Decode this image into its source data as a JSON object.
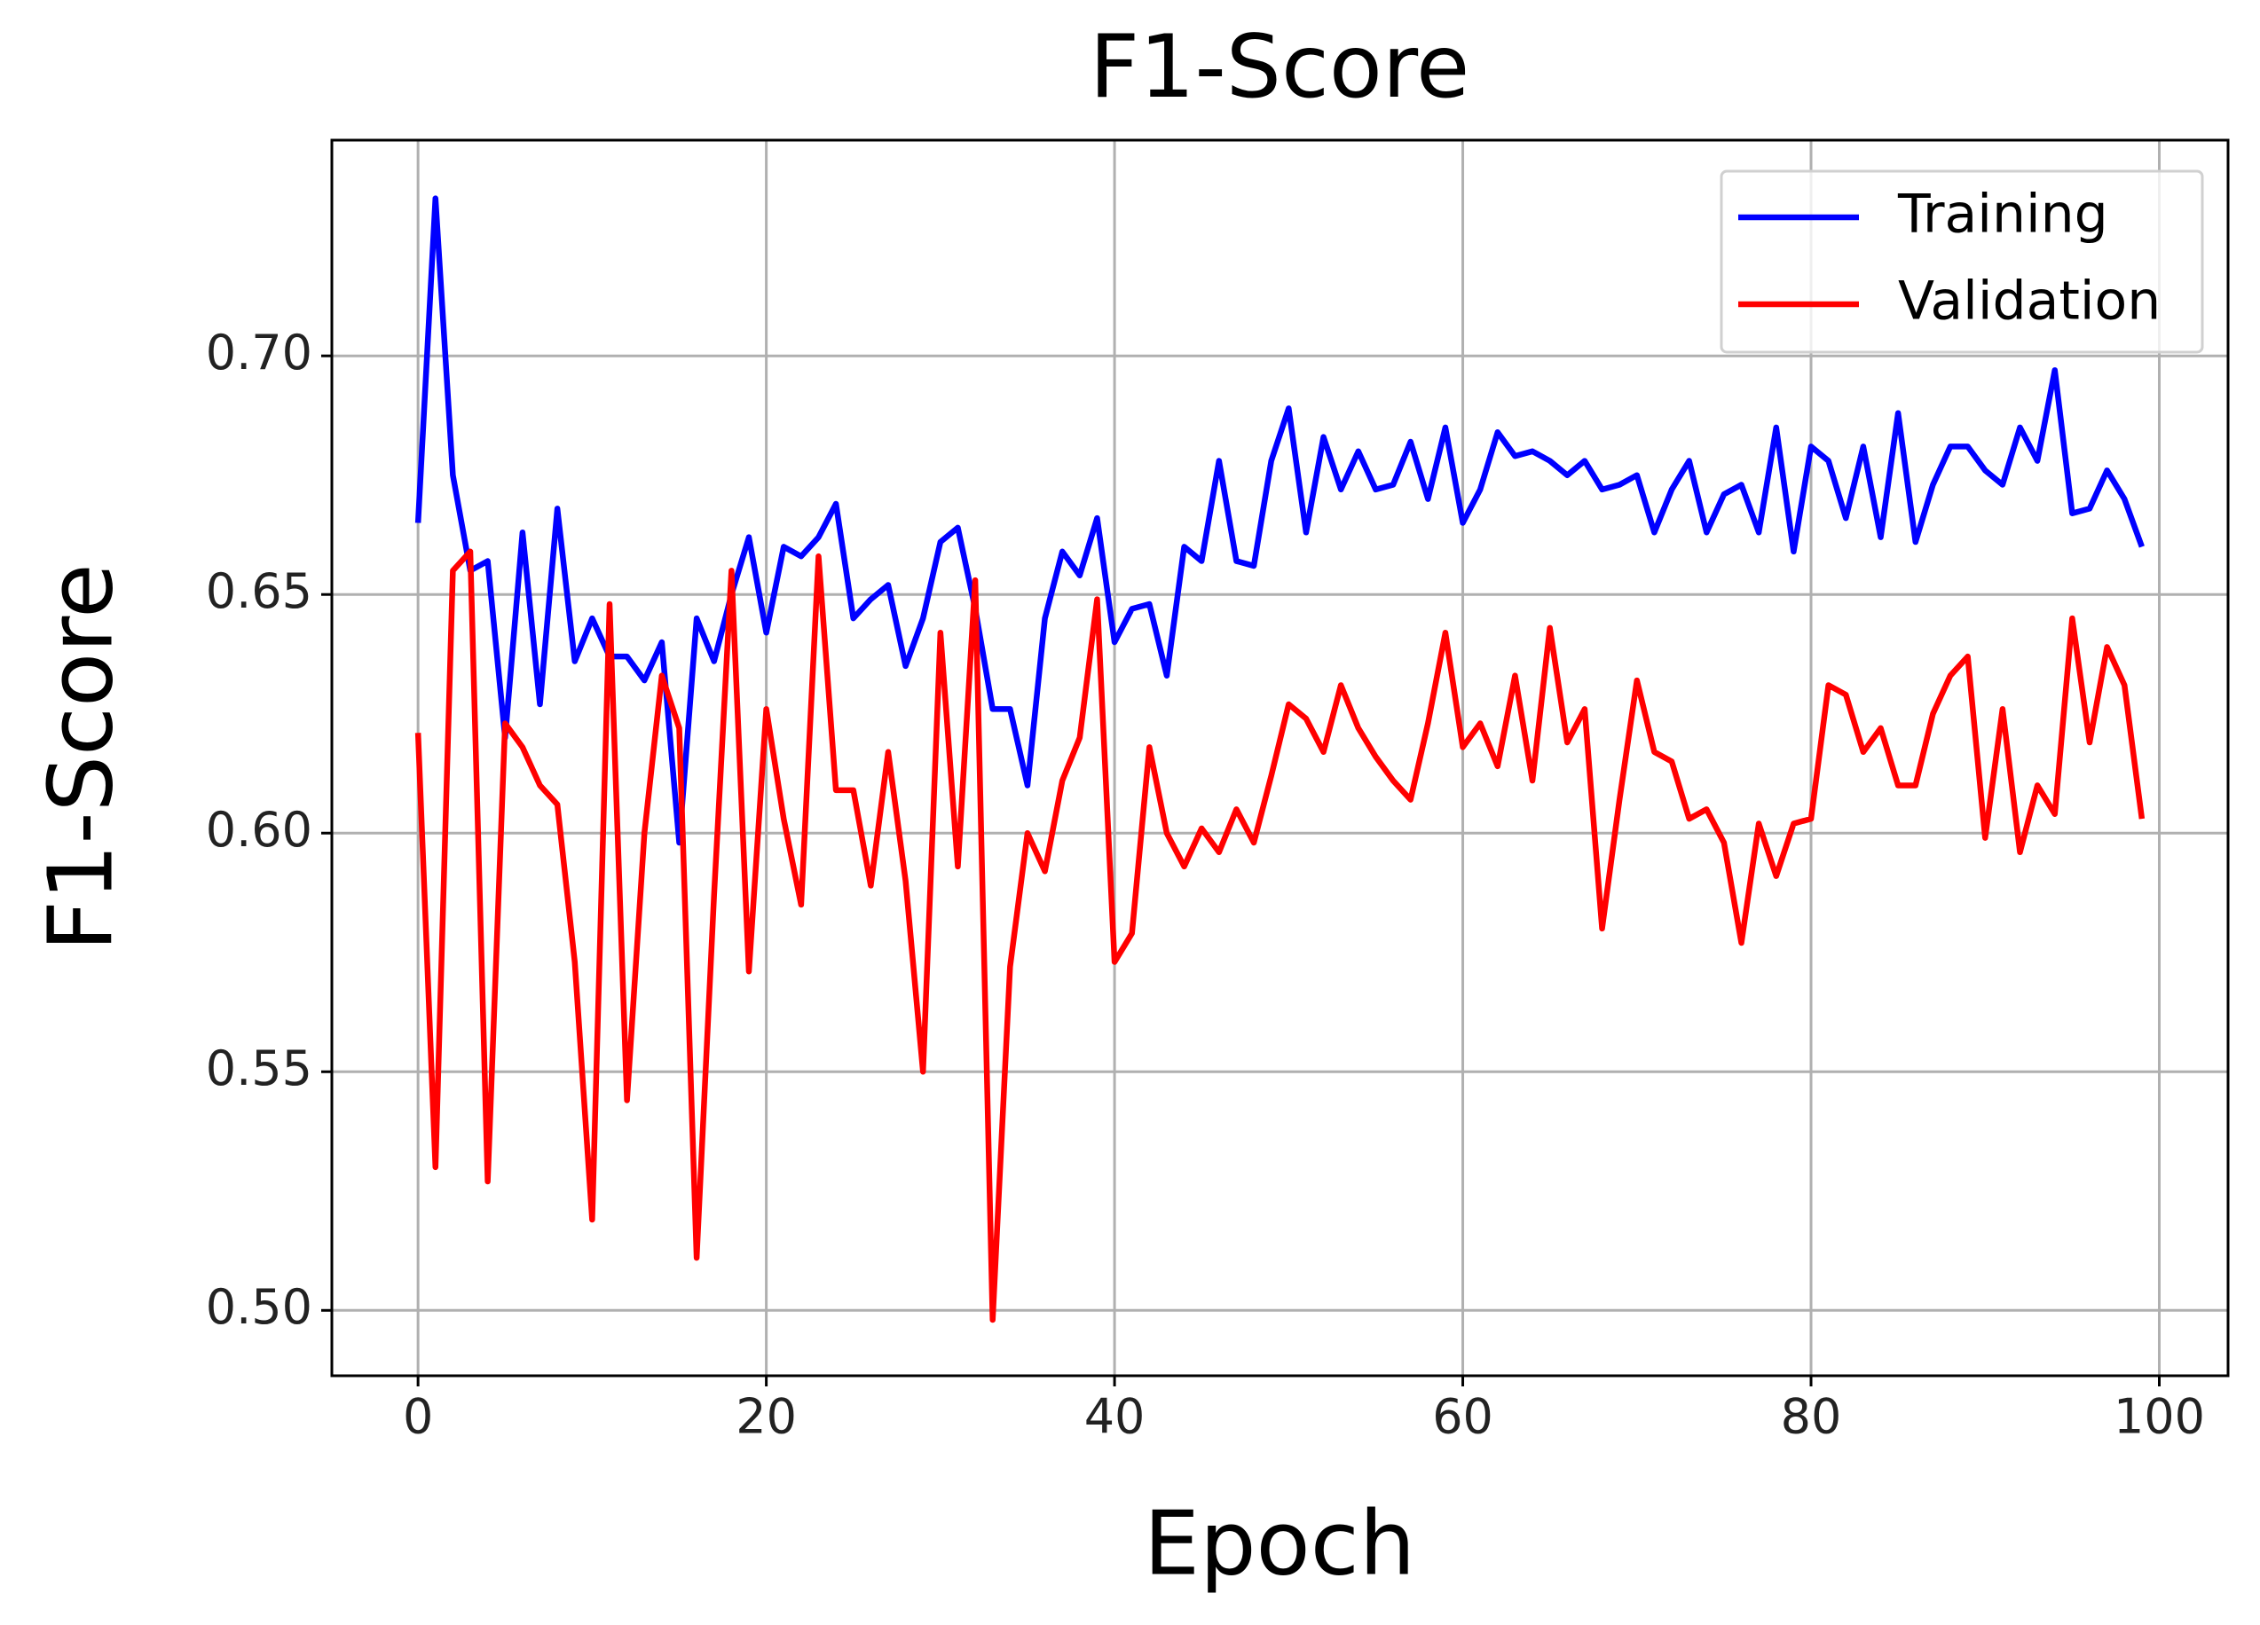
{
  "chart_data": {
    "type": "line",
    "title": "F1-Score",
    "x_label": "Epoch",
    "y_label": "F1-Score",
    "x": [
      0,
      1,
      2,
      3,
      4,
      5,
      6,
      7,
      8,
      9,
      10,
      11,
      12,
      13,
      14,
      15,
      16,
      17,
      18,
      19,
      20,
      21,
      22,
      23,
      24,
      25,
      26,
      27,
      28,
      29,
      30,
      31,
      32,
      33,
      34,
      35,
      36,
      37,
      38,
      39,
      40,
      41,
      42,
      43,
      44,
      45,
      46,
      47,
      48,
      49,
      50,
      51,
      52,
      53,
      54,
      55,
      56,
      57,
      58,
      59,
      60,
      61,
      62,
      63,
      64,
      65,
      66,
      67,
      68,
      69,
      70,
      71,
      72,
      73,
      74,
      75,
      76,
      77,
      78,
      79,
      80,
      81,
      82,
      83,
      84,
      85,
      86,
      87,
      88,
      89,
      90,
      91,
      92,
      93,
      94,
      95,
      96,
      97,
      98,
      99
    ],
    "series": [
      {
        "name": "Training",
        "color": "#0000ff",
        "values": [
          0.665,
          0.733,
          0.675,
          0.655,
          0.657,
          0.62,
          0.663,
          0.627,
          0.668,
          0.636,
          0.645,
          0.637,
          0.637,
          0.632,
          0.64,
          0.598,
          0.645,
          0.636,
          0.65,
          0.662,
          0.642,
          0.66,
          0.658,
          0.662,
          0.669,
          0.645,
          0.649,
          0.652,
          0.635,
          0.645,
          0.661,
          0.664,
          0.647,
          0.626,
          0.626,
          0.61,
          0.645,
          0.659,
          0.654,
          0.666,
          0.64,
          0.647,
          0.648,
          0.633,
          0.66,
          0.657,
          0.678,
          0.657,
          0.656,
          0.678,
          0.689,
          0.663,
          0.683,
          0.672,
          0.68,
          0.672,
          0.673,
          0.682,
          0.67,
          0.685,
          0.665,
          0.672,
          0.684,
          0.679,
          0.68,
          0.678,
          0.675,
          0.678,
          0.672,
          0.673,
          0.675,
          0.663,
          0.672,
          0.678,
          0.663,
          0.671,
          0.673,
          0.663,
          0.685,
          0.659,
          0.681,
          0.678,
          0.666,
          0.681,
          0.662,
          0.688,
          0.661,
          0.673,
          0.681,
          0.681,
          0.676,
          0.673,
          0.685,
          0.678,
          0.697,
          0.667,
          0.668,
          0.676,
          0.67,
          0.66
        ]
      },
      {
        "name": "Validation",
        "color": "#ff0000",
        "values": [
          0.621,
          0.53,
          0.655,
          0.659,
          0.527,
          0.623,
          0.618,
          0.61,
          0.606,
          0.573,
          0.519,
          0.648,
          0.544,
          0.6,
          0.633,
          0.622,
          0.511,
          0.587,
          0.655,
          0.571,
          0.626,
          0.603,
          0.585,
          0.658,
          0.609,
          0.609,
          0.589,
          0.617,
          0.59,
          0.55,
          0.642,
          0.593,
          0.653,
          0.498,
          0.572,
          0.6,
          0.592,
          0.611,
          0.62,
          0.649,
          0.573,
          0.579,
          0.618,
          0.6,
          0.593,
          0.601,
          0.596,
          0.605,
          0.598,
          0.612,
          0.627,
          0.624,
          0.617,
          0.631,
          0.622,
          0.616,
          0.611,
          0.607,
          0.623,
          0.642,
          0.618,
          0.623,
          0.614,
          0.633,
          0.611,
          0.643,
          0.619,
          0.626,
          0.58,
          0.607,
          0.632,
          0.617,
          0.615,
          0.603,
          0.605,
          0.598,
          0.577,
          0.602,
          0.591,
          0.602,
          0.603,
          0.631,
          0.629,
          0.617,
          0.622,
          0.61,
          0.61,
          0.625,
          0.633,
          0.637,
          0.599,
          0.626,
          0.596,
          0.61,
          0.604,
          0.645,
          0.619,
          0.639,
          0.631,
          0.603
        ]
      }
    ],
    "xlim": [
      -4.95,
      103.95
    ],
    "ylim": [
      0.4863,
      0.7452
    ],
    "xticks": [
      0,
      20,
      40,
      60,
      80,
      100
    ],
    "yticks": [
      {
        "value": 0.5,
        "label": "0.50"
      },
      {
        "value": 0.55,
        "label": "0.55"
      },
      {
        "value": 0.6,
        "label": "0.60"
      },
      {
        "value": 0.65,
        "label": "0.65"
      },
      {
        "value": 0.7,
        "label": "0.70"
      }
    ],
    "grid": true,
    "legend": "upper right"
  }
}
